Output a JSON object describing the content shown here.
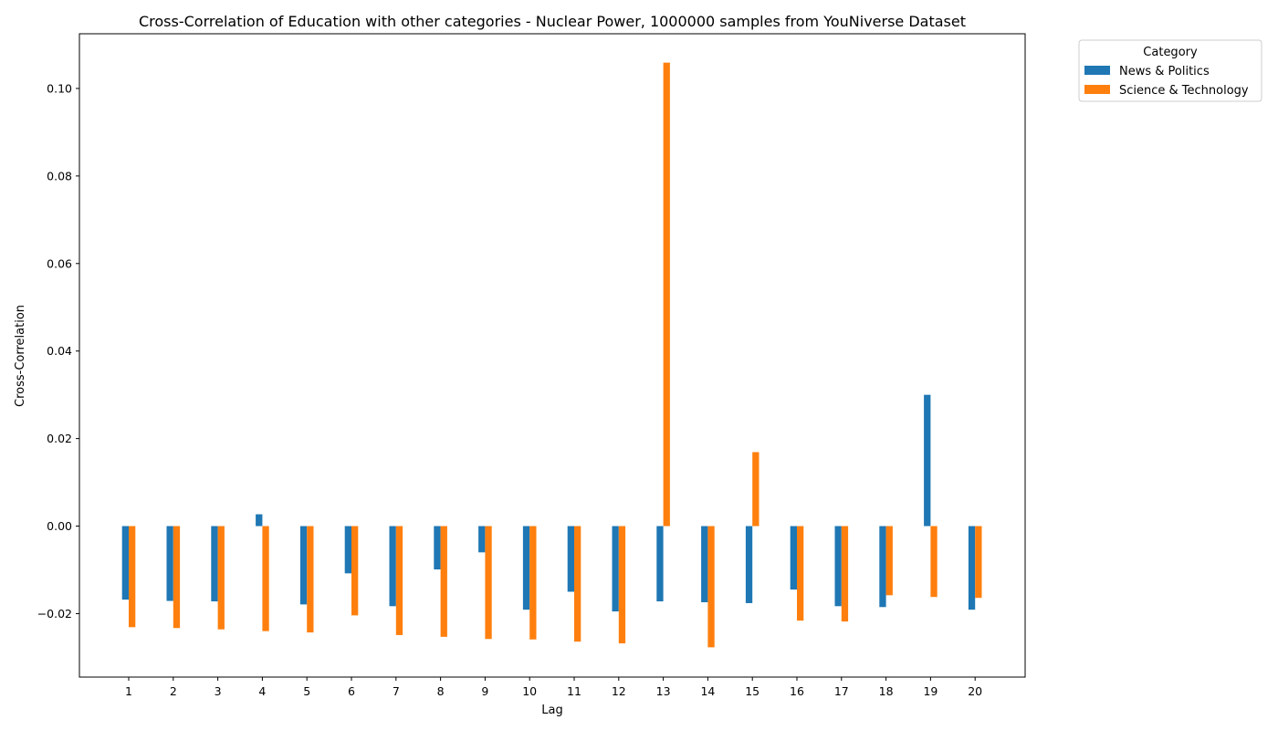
{
  "chart_data": {
    "type": "bar",
    "title": "Cross-Correlation of Education with other categories - Nuclear Power, 1000000 samples from YouNiverse Dataset",
    "xlabel": "Lag",
    "ylabel": "Cross-Correlation",
    "categories": [
      "1",
      "2",
      "3",
      "4",
      "5",
      "6",
      "7",
      "8",
      "9",
      "10",
      "11",
      "12",
      "13",
      "14",
      "15",
      "16",
      "17",
      "18",
      "19",
      "20"
    ],
    "ylim": [
      -0.0345,
      0.1125
    ],
    "yticks": [
      {
        "value": -0.02,
        "label": "−0.02"
      },
      {
        "value": 0.0,
        "label": "0.00"
      },
      {
        "value": 0.02,
        "label": "0.02"
      },
      {
        "value": 0.04,
        "label": "0.04"
      },
      {
        "value": 0.06,
        "label": "0.06"
      },
      {
        "value": 0.08,
        "label": "0.08"
      },
      {
        "value": 0.1,
        "label": "0.10"
      }
    ],
    "grid": false,
    "legend": {
      "title": "Category",
      "placement": "outside-top-right"
    },
    "series": [
      {
        "name": "News & Politics",
        "color": "#1f77b4",
        "values": [
          -0.0168,
          -0.0171,
          -0.0172,
          0.0027,
          -0.0179,
          -0.0108,
          -0.0183,
          -0.0099,
          -0.006,
          -0.0191,
          -0.015,
          -0.0195,
          -0.0172,
          -0.0174,
          -0.0176,
          -0.0145,
          -0.0183,
          -0.0185,
          0.03,
          -0.0191
        ]
      },
      {
        "name": "Science & Technology",
        "color": "#ff7f0e",
        "values": [
          -0.0231,
          -0.0233,
          -0.0236,
          -0.024,
          -0.0243,
          -0.0204,
          -0.0249,
          -0.0253,
          -0.0258,
          -0.0259,
          -0.0264,
          -0.0268,
          0.1059,
          -0.0277,
          0.0169,
          -0.0216,
          -0.0218,
          -0.0158,
          -0.0162,
          -0.0164
        ]
      }
    ]
  }
}
